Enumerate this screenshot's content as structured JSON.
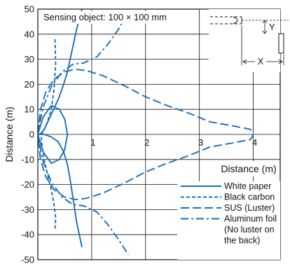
{
  "chart_data": {
    "type": "line",
    "annotation": "Sensing object: 100 × 100 mm",
    "xlabel": "Distance (m)",
    "ylabel": "Distance (m)",
    "xlim": [
      0,
      4.5
    ],
    "ylim": [
      -50,
      50
    ],
    "x_ticks": [
      1,
      2,
      3,
      4
    ],
    "y_ticks": [
      50,
      40,
      30,
      20,
      10,
      0,
      -10,
      -20,
      -30,
      -40,
      -50
    ],
    "grid": true,
    "legend_position": "bottom-right",
    "inset": {
      "x_label": "X",
      "y_label": "Y"
    },
    "series": [
      {
        "name": "White paper",
        "style": "solid",
        "color": "#1a6ebd",
        "x": [
          0,
          0.1,
          0.25,
          0.4,
          0.5,
          0.55,
          0.5,
          0.4,
          0.25,
          0.1,
          0
        ],
        "y": [
          0,
          7,
          11.5,
          10,
          6,
          0,
          -6,
          -10,
          -11.5,
          -7,
          0
        ]
      },
      {
        "name": "White paper",
        "style": "solid",
        "color": "#1a6ebd",
        "x": [
          0.82,
          0.72,
          0.65,
          0.6,
          0.55,
          0.48,
          0.38,
          0.25,
          0.12,
          0.04,
          0,
          0.04,
          0.12,
          0.25,
          0.38,
          0.48,
          0.55,
          0.6,
          0.65,
          0.72,
          0.82
        ],
        "y": [
          -45,
          -35,
          -25,
          -18,
          -12,
          -7,
          -3,
          -1,
          0,
          0,
          0,
          0,
          2,
          8,
          14,
          20,
          25,
          30,
          35,
          42,
          50
        ]
      },
      {
        "name": "Black carbon",
        "style": "dashed",
        "color": "#1a6ebd",
        "x": [
          0.32,
          0.33,
          0.3,
          0.25,
          0.18,
          0.12,
          0.08,
          0.06,
          0.08,
          0.12,
          0.18,
          0.25,
          0.3,
          0.33,
          0.32
        ],
        "y": [
          38,
          28,
          18,
          10,
          5,
          2,
          0,
          0,
          -5,
          -10,
          -16,
          -22,
          -28,
          -33,
          -38
        ]
      },
      {
        "name": "SUS (Luster)",
        "style": "long-dash",
        "color": "#1a6ebd",
        "x": [
          0,
          0.05,
          0.15,
          0.3,
          0.5,
          0.7,
          0.9,
          1.2,
          1.6,
          2.0,
          2.4,
          2.8,
          3.2,
          3.6,
          3.95,
          4.0,
          3.95,
          3.6,
          3.2,
          2.8,
          2.4,
          2.0,
          1.6,
          1.2,
          0.9,
          0.7,
          0.5,
          0.3,
          0.15,
          0.05,
          0
        ],
        "y": [
          0,
          10,
          17,
          22,
          25,
          26,
          25.5,
          23.5,
          19.5,
          15,
          11.5,
          8.5,
          5,
          3.5,
          2,
          0,
          -2,
          -3.5,
          -5,
          -8.5,
          -11.5,
          -15,
          -19.5,
          -23.5,
          -25.5,
          -26,
          -25,
          -22,
          -17,
          -10,
          0
        ]
      },
      {
        "name": "Aluminum foil (No luster on the back)",
        "style": "dash-dot",
        "color": "#1a6ebd",
        "x": [
          1.65,
          1.5,
          1.3,
          1.1,
          0.85,
          0.65,
          0.45,
          0.25,
          0.1,
          0.03,
          0,
          0.03,
          0.1,
          0.25,
          0.45,
          0.65,
          0.85,
          1.1,
          1.3,
          1.5,
          1.68
        ],
        "y": [
          48,
          42,
          36,
          31,
          28.5,
          28,
          25,
          19,
          11,
          4,
          0,
          -4,
          -11,
          -19,
          -25,
          -28,
          -28.5,
          -31,
          -36,
          -42,
          -48
        ]
      }
    ],
    "legend": [
      {
        "label": "White paper",
        "style": "solid"
      },
      {
        "label": "Black carbon",
        "style": "dashed"
      },
      {
        "label": "SUS (Luster)",
        "style": "long-dash"
      },
      {
        "label": "Aluminum foil",
        "style": "dash-dot"
      },
      {
        "label": "(No luster on",
        "style": "none"
      },
      {
        "label": "the back)",
        "style": "none"
      }
    ]
  }
}
